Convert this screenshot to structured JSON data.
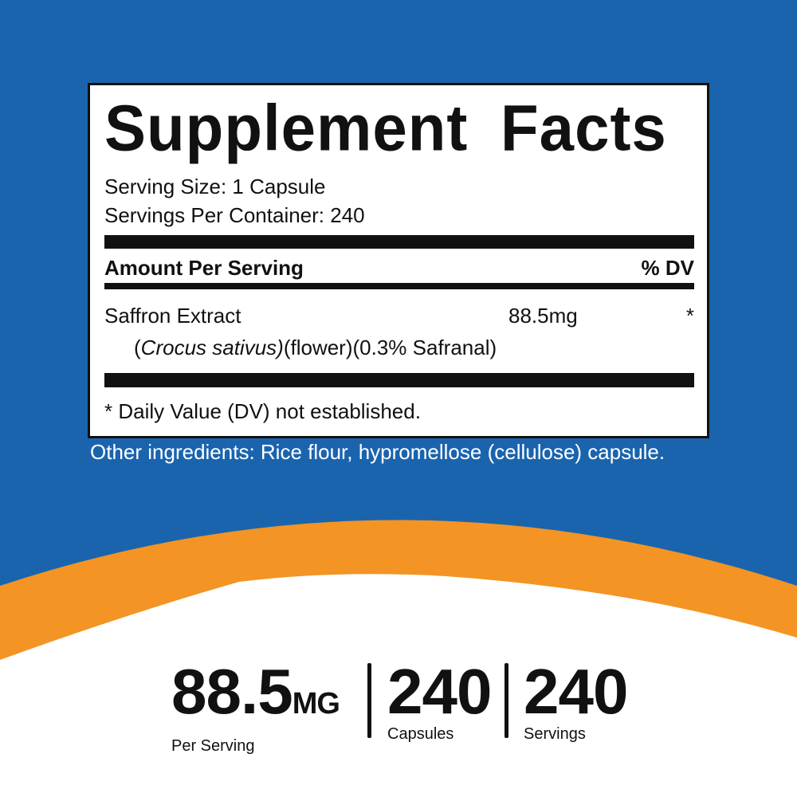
{
  "colors": {
    "background": "#1a64ae",
    "accent": "#f39424",
    "panel": "#ffffff",
    "text": "#111111"
  },
  "facts": {
    "title": "Supplement Facts",
    "serving_size": "Serving Size: 1 Capsule",
    "servings_per_container": "Servings Per Container: 240",
    "header_amount": "Amount Per Serving",
    "header_dv": "% DV",
    "ingredient": {
      "name": "Saffron Extract",
      "amount": "88.5mg",
      "dv": "*",
      "detail_open": "(",
      "detail_italic": "Crocus sativus)",
      "detail_rest": "(flower)(0.3% Safranal)"
    },
    "footnote": "* Daily Value (DV) not established."
  },
  "other_ingredients": "Other ingredients: Rice flour, hypromellose (cellulose) capsule.",
  "stats": [
    {
      "value": "88.5",
      "unit": "MG",
      "label": "Per Serving"
    },
    {
      "value": "240",
      "unit": "",
      "label": "Capsules"
    },
    {
      "value": "240",
      "unit": "",
      "label": "Servings"
    }
  ]
}
